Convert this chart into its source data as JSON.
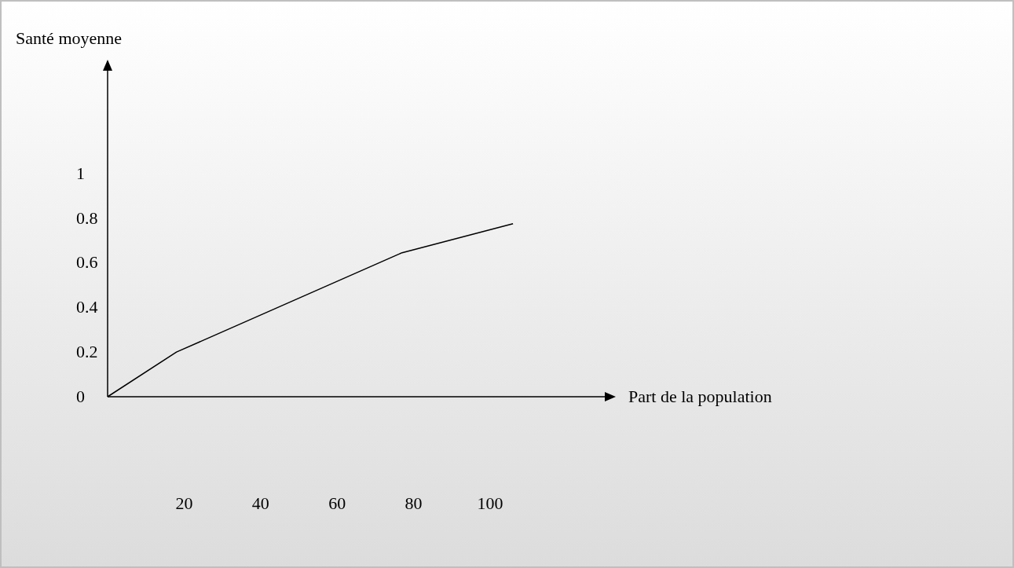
{
  "chart_data": {
    "type": "line",
    "xlabel": "Part de la population",
    "ylabel": "Santé moyenne",
    "x": [
      0,
      18,
      77,
      106
    ],
    "series": [
      {
        "color": "#000000",
        "values": [
          0,
          0.2,
          0.645,
          0.775
        ]
      }
    ],
    "xlim": [
      0,
      130
    ],
    "xticks": [
      20,
      40,
      60,
      80,
      100
    ],
    "ylim": [
      0,
      1.46
    ],
    "yticks": [
      0,
      0.2,
      0.4,
      0.6,
      0.8,
      1
    ],
    "grid": false,
    "marker": "none",
    "line_style": "solid"
  }
}
